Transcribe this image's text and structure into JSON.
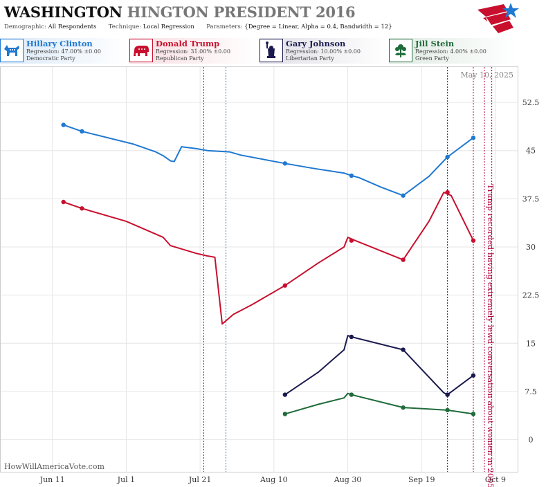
{
  "header": {
    "title_main": "WASHINGTON",
    "title_sub": "HINGTON PRESIDENT 2016",
    "demographic_label": "Demographic:",
    "demographic_value": "All Respondents",
    "technique_label": "Technique:",
    "technique_value": "Local Regression",
    "parameters_label": "Parameters:",
    "parameters_value": "{Degree = Linear, Alpha = 0.4, Bandwidth = 12}"
  },
  "legend": [
    {
      "name": "Hillary Clinton",
      "regression": "Regression: 47.00% ±0.00",
      "party": "Democratic Party",
      "color": "#1f78d1",
      "icon": "donkey-icon"
    },
    {
      "name": "Donald Trump",
      "regression": "Regression: 31.00% ±0.00",
      "party": "Republican Party",
      "color": "#c8102e",
      "icon": "elephant-icon"
    },
    {
      "name": "Gary Johnson",
      "regression": "Regression: 10.00% ±0.00",
      "party": "Libertarian Party",
      "color": "#1a1a4e",
      "icon": "liberty-statue-icon"
    },
    {
      "name": "Jill Stein",
      "regression": "Regression: 4.00% ±0.00",
      "party": "Green Party",
      "color": "#1f6b3a",
      "icon": "flower-icon"
    }
  ],
  "watermark": "HowWillAmericaVote.com",
  "date_stamp": "May 10, 2025",
  "annotation": "Trump recorded having extremely lewd conversation about women in 2005",
  "chart_data": {
    "type": "line",
    "title": "",
    "xlabel": "",
    "ylabel": "",
    "ylim": [
      -5,
      58
    ],
    "y_ticks": [
      0,
      7.5,
      15,
      22.5,
      30,
      37.5,
      45,
      52.5
    ],
    "y_tick_labels": [
      "0",
      "7.5",
      "15",
      "22.5",
      "30",
      "37.5",
      "45",
      "52.5"
    ],
    "x_range": [
      "2016-05-28",
      "2016-10-15"
    ],
    "x_ticks": [
      "2016-06-11",
      "2016-07-01",
      "2016-07-21",
      "2016-08-10",
      "2016-08-30",
      "2016-09-19",
      "2016-10-09"
    ],
    "x_tick_labels": [
      "Jun 11",
      "Jul 1",
      "Jul 21",
      "Aug 10",
      "Aug 30",
      "Sep 19",
      "Oct 9"
    ],
    "vertical_lines": [
      {
        "date": "2016-07-22",
        "color": "#b0003a"
      },
      {
        "date": "2016-07-28",
        "color": "#1f78d1"
      },
      {
        "date": "2016-09-26",
        "color": "#1f78d1"
      },
      {
        "date": "2016-09-26",
        "color": "#b0003a"
      },
      {
        "date": "2016-10-03",
        "color": "#b0003a"
      },
      {
        "date": "2016-10-06",
        "color": "#b0003a"
      },
      {
        "date": "2016-10-08",
        "color": "#b0003a"
      }
    ],
    "series": [
      {
        "name": "Hillary Clinton",
        "color": "#1f78d1",
        "line": [
          [
            "2016-06-14",
            49
          ],
          [
            "2016-06-19",
            48
          ],
          [
            "2016-07-03",
            46
          ],
          [
            "2016-07-09",
            44.8
          ],
          [
            "2016-07-11",
            44.2
          ],
          [
            "2016-07-13",
            43.4
          ],
          [
            "2016-07-14",
            43.3
          ],
          [
            "2016-07-16",
            45.6
          ],
          [
            "2016-07-20",
            45.3
          ],
          [
            "2016-07-23",
            45
          ],
          [
            "2016-07-29",
            44.8
          ],
          [
            "2016-08-01",
            44.3
          ],
          [
            "2016-08-13",
            43
          ],
          [
            "2016-08-21",
            42.2
          ],
          [
            "2016-08-29",
            41.5
          ],
          [
            "2016-08-30",
            41.3
          ],
          [
            "2016-08-31",
            41.1
          ],
          [
            "2016-09-02",
            40.8
          ],
          [
            "2016-09-08",
            39.3
          ],
          [
            "2016-09-14",
            38
          ],
          [
            "2016-09-21",
            41
          ],
          [
            "2016-09-26",
            44
          ],
          [
            "2016-10-03",
            47
          ]
        ],
        "points": [
          [
            "2016-06-14",
            49
          ],
          [
            "2016-06-19",
            48
          ],
          [
            "2016-08-13",
            43
          ],
          [
            "2016-08-31",
            41.1
          ],
          [
            "2016-09-14",
            38
          ],
          [
            "2016-09-26",
            44
          ],
          [
            "2016-10-03",
            47
          ]
        ]
      },
      {
        "name": "Donald Trump",
        "color": "#c8102e",
        "line": [
          [
            "2016-06-14",
            37
          ],
          [
            "2016-06-19",
            36
          ],
          [
            "2016-07-01",
            34
          ],
          [
            "2016-07-11",
            31.5
          ],
          [
            "2016-07-13",
            30.2
          ],
          [
            "2016-07-20",
            29
          ],
          [
            "2016-07-23",
            28.6
          ],
          [
            "2016-07-25",
            28.4
          ],
          [
            "2016-07-27",
            18
          ],
          [
            "2016-07-30",
            19.5
          ],
          [
            "2016-08-04",
            21
          ],
          [
            "2016-08-13",
            24
          ],
          [
            "2016-08-22",
            27.5
          ],
          [
            "2016-08-29",
            30
          ],
          [
            "2016-08-30",
            31.5
          ],
          [
            "2016-09-01",
            31
          ],
          [
            "2016-09-14",
            28
          ],
          [
            "2016-09-21",
            34
          ],
          [
            "2016-09-25",
            38.5
          ],
          [
            "2016-09-27",
            38
          ],
          [
            "2016-10-03",
            31
          ]
        ],
        "points": [
          [
            "2016-06-14",
            37
          ],
          [
            "2016-06-19",
            36
          ],
          [
            "2016-08-13",
            24
          ],
          [
            "2016-08-31",
            31
          ],
          [
            "2016-09-14",
            28
          ],
          [
            "2016-09-26",
            38.5
          ],
          [
            "2016-10-03",
            31
          ]
        ]
      },
      {
        "name": "Gary Johnson",
        "color": "#1a1a4e",
        "line": [
          [
            "2016-08-13",
            7
          ],
          [
            "2016-08-22",
            10.5
          ],
          [
            "2016-08-29",
            14
          ],
          [
            "2016-08-30",
            16.2
          ],
          [
            "2016-08-31",
            16
          ],
          [
            "2016-09-14",
            14
          ],
          [
            "2016-09-23",
            8.5
          ],
          [
            "2016-09-25",
            7.3
          ],
          [
            "2016-09-26",
            7
          ],
          [
            "2016-10-03",
            10
          ]
        ],
        "points": [
          [
            "2016-08-13",
            7
          ],
          [
            "2016-08-31",
            16
          ],
          [
            "2016-09-14",
            14
          ],
          [
            "2016-09-26",
            7
          ],
          [
            "2016-10-03",
            10
          ]
        ]
      },
      {
        "name": "Jill Stein",
        "color": "#1f6b3a",
        "line": [
          [
            "2016-08-13",
            4
          ],
          [
            "2016-08-22",
            5.5
          ],
          [
            "2016-08-29",
            6.5
          ],
          [
            "2016-08-30",
            7.2
          ],
          [
            "2016-08-31",
            7
          ],
          [
            "2016-09-14",
            5
          ],
          [
            "2016-09-26",
            4.6
          ],
          [
            "2016-10-03",
            4
          ]
        ],
        "points": [
          [
            "2016-08-13",
            4
          ],
          [
            "2016-08-31",
            7
          ],
          [
            "2016-09-14",
            5
          ],
          [
            "2016-09-26",
            4.6
          ],
          [
            "2016-10-03",
            4
          ]
        ]
      }
    ]
  }
}
